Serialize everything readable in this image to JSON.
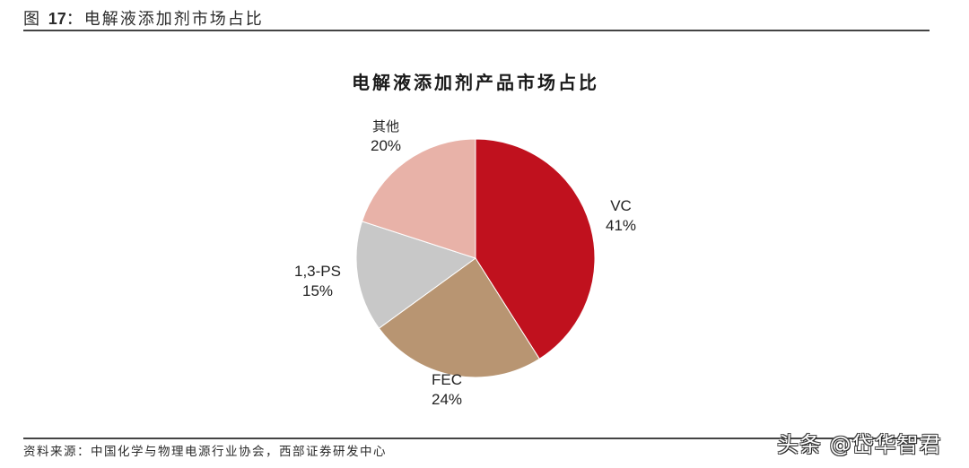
{
  "figure": {
    "label": "图 ",
    "number": "17",
    "title_suffix": "：电解液添加剂市场占比"
  },
  "source": "资料来源：中国化学与物理电源行业协会，西部证券研发中心",
  "watermark": "头条 @岱华智君",
  "chart_data": {
    "type": "pie",
    "title": "电解液添加剂产品市场占比",
    "categories": [
      "VC",
      "FEC",
      "1,3-PS",
      "其他"
    ],
    "values": [
      41,
      24,
      15,
      20
    ],
    "unit": "%",
    "colors": [
      "#c0111e",
      "#b89572",
      "#c8c8c8",
      "#e8b2a8"
    ],
    "start_angle_deg": 0,
    "direction": "clockwise",
    "labels": [
      {
        "name": "VC",
        "pct": "41%"
      },
      {
        "name": "FEC",
        "pct": "24%"
      },
      {
        "name": "1,3-PS",
        "pct": "15%"
      },
      {
        "name": "其他",
        "pct": "20%"
      }
    ],
    "legend": "none (data labels outside slices)"
  }
}
